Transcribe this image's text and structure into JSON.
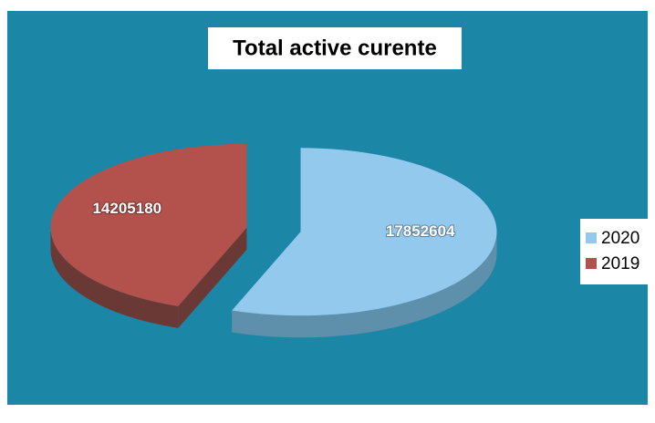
{
  "chart_data": {
    "type": "pie",
    "title": "Total active curente",
    "categories": [
      "2020",
      "2019"
    ],
    "values": [
      17852604,
      14205180
    ],
    "colors": [
      "#94c9ee",
      "#b3524c"
    ],
    "side_colors": [
      "#5e8fab",
      "#6b3935"
    ],
    "legend": "right"
  }
}
